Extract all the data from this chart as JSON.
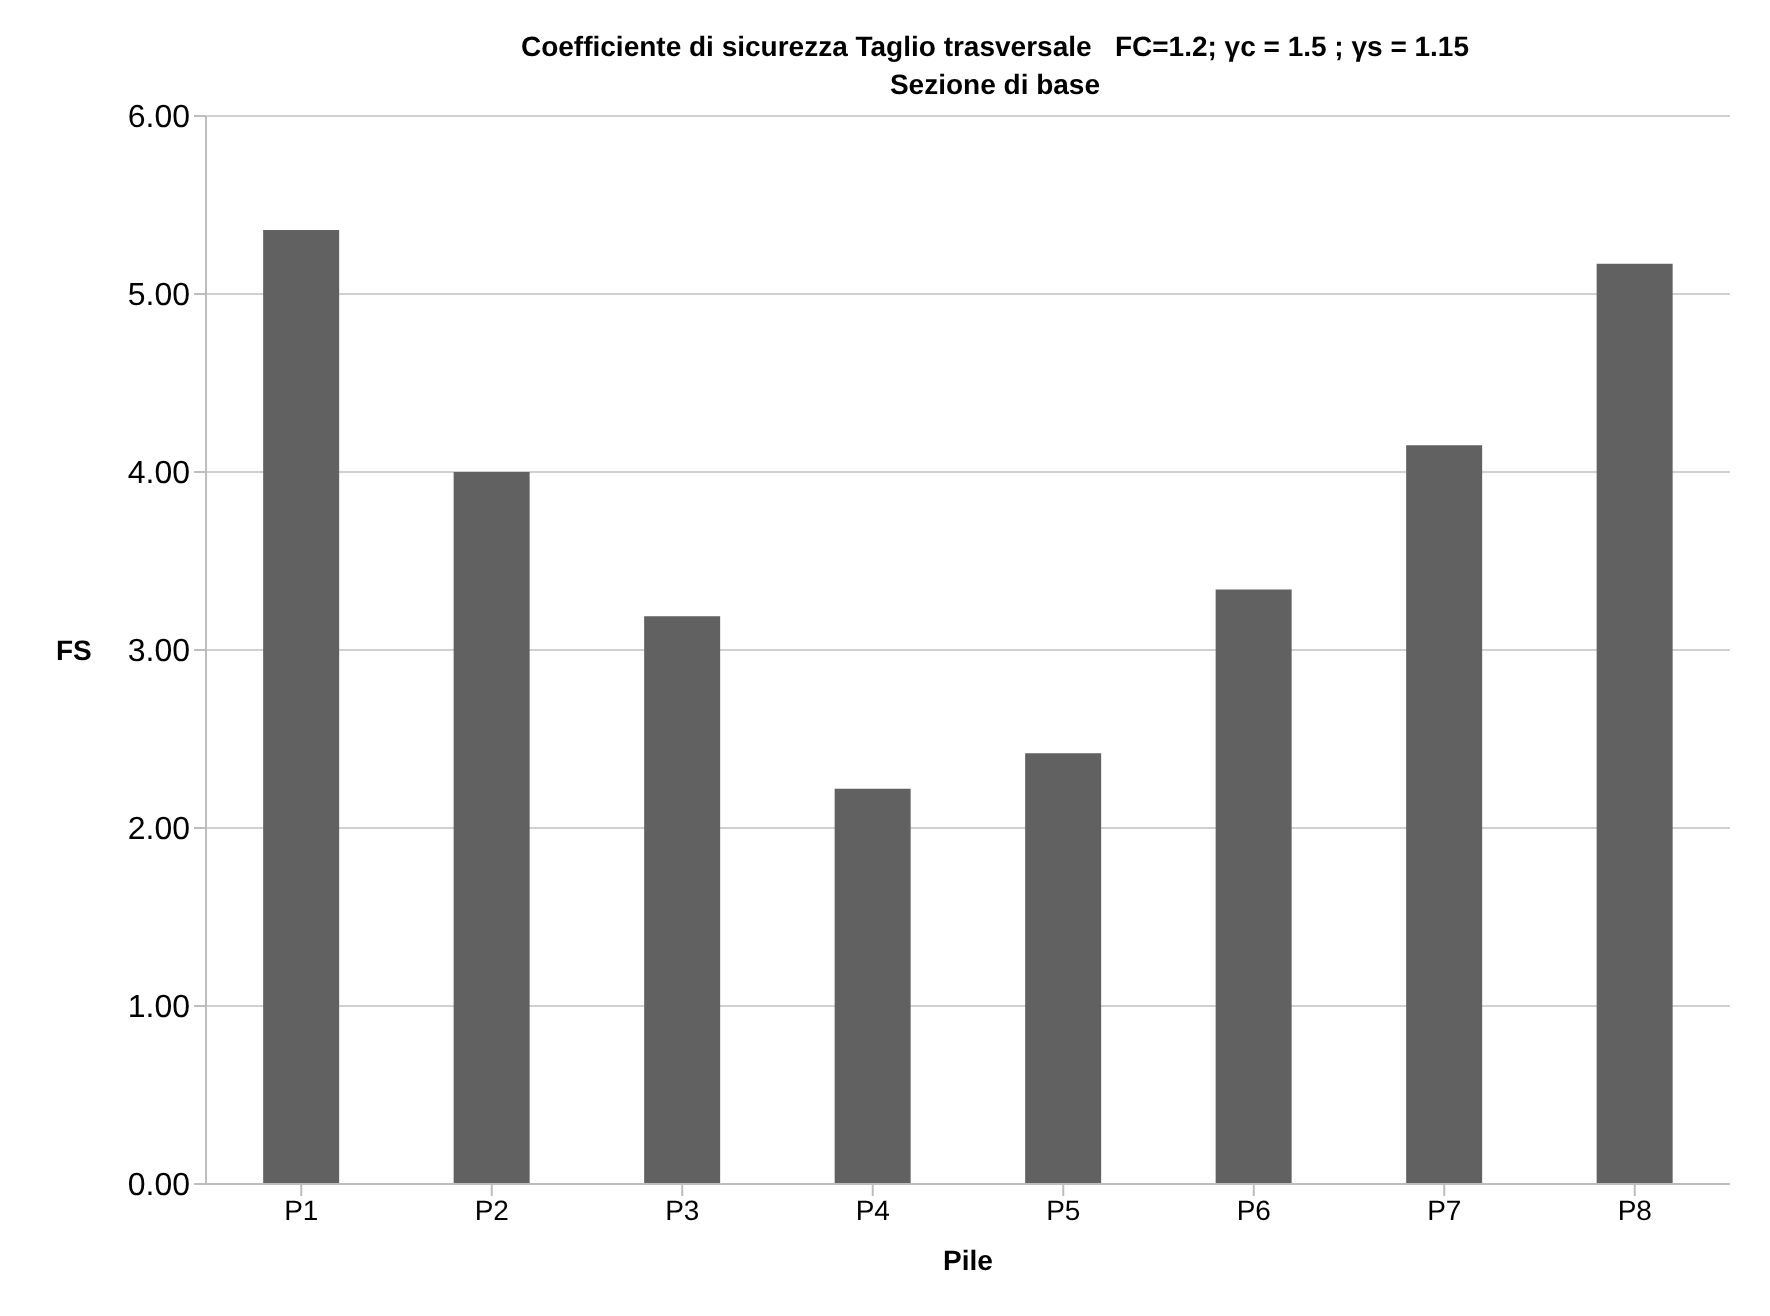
{
  "chart_data": {
    "type": "bar",
    "title": "Coefficiente di sicurezza Taglio trasversale   FC=1.2; γc = 1.5 ; γs = 1.15",
    "subtitle": "Sezione di base",
    "xlabel": "Pile",
    "ylabel": "FS",
    "categories": [
      "P1",
      "P2",
      "P3",
      "P4",
      "P5",
      "P6",
      "P7",
      "P8"
    ],
    "values": [
      5.36,
      4.0,
      3.19,
      2.22,
      2.42,
      3.34,
      4.15,
      5.17
    ],
    "color": "#616161",
    "ylim": [
      0,
      6
    ],
    "yticks": [
      {
        "value": 0,
        "label": "0.00"
      },
      {
        "value": 1,
        "label": "1.00"
      },
      {
        "value": 2,
        "label": "2.00"
      },
      {
        "value": 3,
        "label": "3.00"
      },
      {
        "value": 4,
        "label": "4.00"
      },
      {
        "value": 5,
        "label": "5.00"
      },
      {
        "value": 6,
        "label": "6.00"
      }
    ],
    "grid": "y"
  }
}
